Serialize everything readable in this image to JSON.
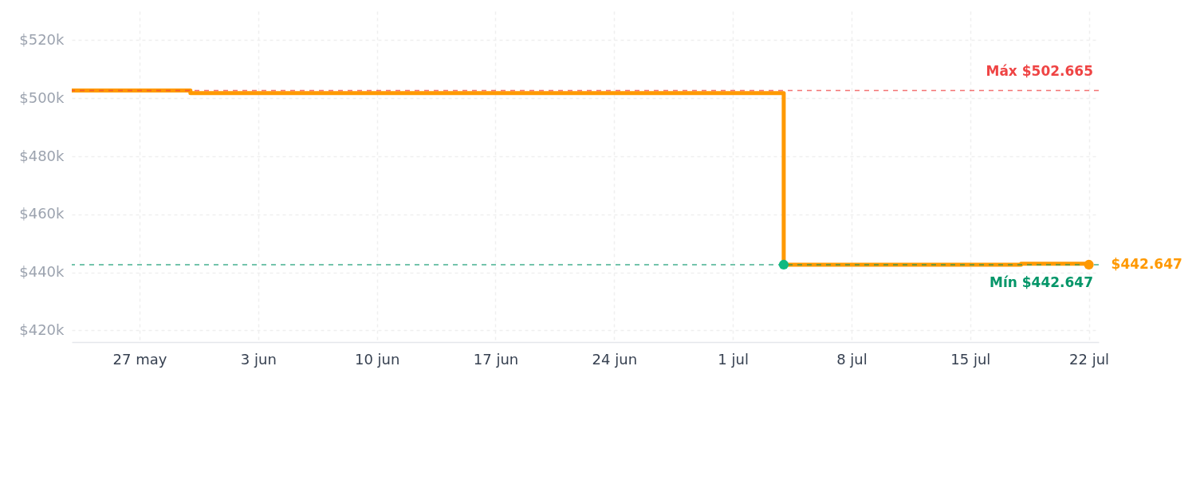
{
  "chart_data": {
    "type": "step",
    "xlim": [
      "--05-23",
      "--07-22T14:00"
    ],
    "xticks": [
      {
        "value": "--05-27",
        "label": "27 may"
      },
      {
        "value": "--06-03",
        "label": "3 jun"
      },
      {
        "value": "--06-10",
        "label": "10 jun"
      },
      {
        "value": "--06-17",
        "label": "17 jun"
      },
      {
        "value": "--06-24",
        "label": "24 jun"
      },
      {
        "value": "--07-01",
        "label": "1 jul"
      },
      {
        "value": "--07-08",
        "label": "8 jul"
      },
      {
        "value": "--07-15",
        "label": "15 jul"
      },
      {
        "value": "--07-22",
        "label": "22 jul"
      }
    ],
    "ylim": [
      416000,
      530000
    ],
    "yticks": [
      {
        "value": 420000,
        "label": "$420k"
      },
      {
        "value": 440000,
        "label": "$440k"
      },
      {
        "value": 460000,
        "label": "$460k"
      },
      {
        "value": 480000,
        "label": "$480k"
      },
      {
        "value": 500000,
        "label": "$500k"
      },
      {
        "value": 520000,
        "label": "$520k"
      }
    ],
    "grid": true,
    "line_style": "solid",
    "series": [
      {
        "color": "#ff9900",
        "marker": "none",
        "x": [
          "--05-23",
          "--05-30",
          "--07-04",
          "--07-18",
          "--07-22"
        ],
        "values": [
          502665,
          501800,
          442647,
          443000,
          442647
        ]
      },
      {
        "type": "scatter",
        "marker": "circle",
        "color": "#10b981",
        "x": [
          "--07-04"
        ],
        "values": [
          442647
        ]
      },
      {
        "type": "scatter",
        "marker": "circle",
        "color": "#ff9900",
        "x": [
          "--07-22"
        ],
        "values": [
          442647
        ],
        "value_labels": [
          "$442.647"
        ]
      }
    ],
    "ref_lines": [
      {
        "axis": "y",
        "value": 502665,
        "label": "Máx $502.665",
        "color": "#ef4444",
        "line_style": "dashed"
      },
      {
        "axis": "y",
        "value": 442647,
        "label": "Mín $442.647",
        "color": "#059669",
        "line_style": "dashed"
      }
    ]
  }
}
